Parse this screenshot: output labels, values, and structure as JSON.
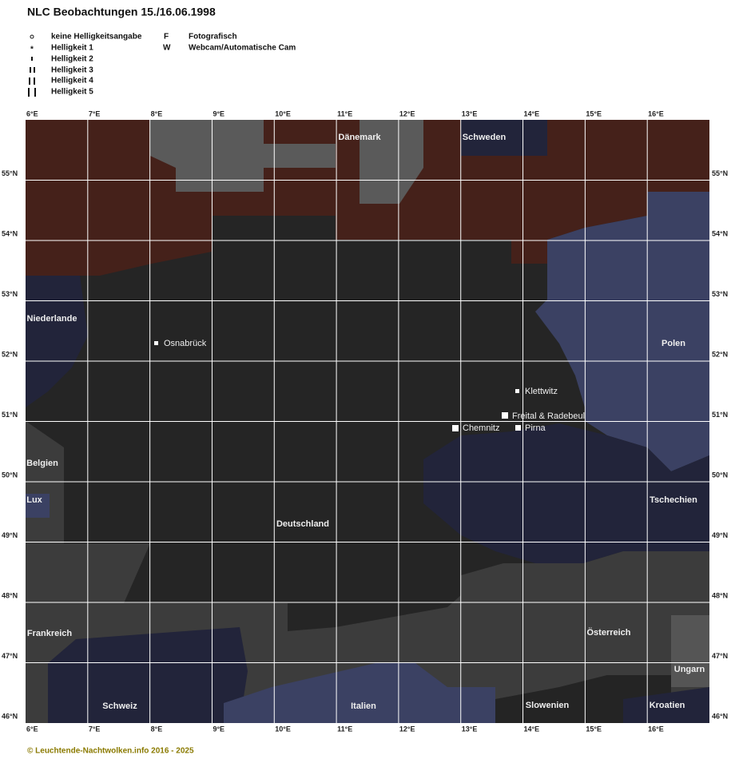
{
  "title": "NLC Beobachtungen 15./16.06.1998",
  "legend": {
    "brightness": [
      "keine Helligkeitsangabe",
      "Helligkeit 1",
      "Helligkeit 2",
      "Helligkeit 3",
      "Helligkeit 4",
      "Helligkeit 5"
    ],
    "types": [
      {
        "symbol": "F",
        "label": "Fotografisch"
      },
      {
        "symbol": "W",
        "label": "Webcam/Automatische Cam"
      }
    ]
  },
  "map": {
    "lon_labels": [
      "6°E",
      "7°E",
      "8°E",
      "9°E",
      "10°E",
      "11°E",
      "12°E",
      "13°E",
      "14°E",
      "15°E",
      "16°E"
    ],
    "lat_labels": [
      "55°N",
      "54°N",
      "53°N",
      "52°N",
      "51°N",
      "50°N",
      "49°N",
      "48°N",
      "47°N",
      "46°N"
    ],
    "countries": [
      "Dänemark",
      "Schweden",
      "Niederlande",
      "Polen",
      "Belgien",
      "Lux",
      "Tschechien",
      "Deutschland",
      "Frankreich",
      "Österreich",
      "Ungarn",
      "Schweiz",
      "Italien",
      "Slowenien",
      "Kroatien"
    ],
    "cities": [
      "Osnabrück",
      "Klettwitz",
      "Freital & Radebeul",
      "Pirna",
      "Chemnitz"
    ]
  },
  "footer": "© Leuchtende-Nachtwolken.info 2016 - 2025"
}
